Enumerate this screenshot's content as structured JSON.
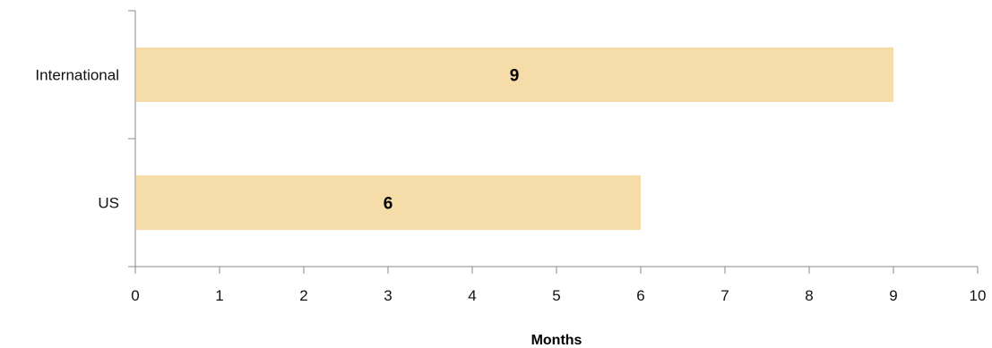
{
  "chart_data": {
    "type": "bar",
    "orientation": "horizontal",
    "categories": [
      "International",
      "US"
    ],
    "values": [
      9,
      6
    ],
    "data_labels": [
      "9",
      "6"
    ],
    "xlabel": "Months",
    "xlim": [
      0,
      10
    ],
    "x_ticks": [
      "0",
      "1",
      "2",
      "3",
      "4",
      "5",
      "6",
      "7",
      "8",
      "9",
      "10"
    ],
    "grid": false,
    "bar_color": "#F6DCA9"
  }
}
